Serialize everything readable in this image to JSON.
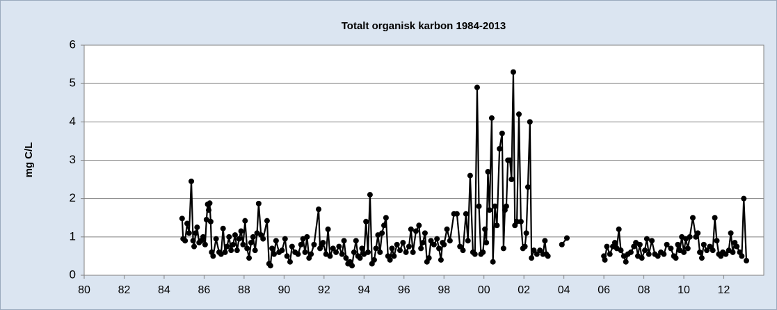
{
  "chart_data": {
    "type": "line",
    "title": "Totalt organisk karbon 1984-2013",
    "y_label": "mg C/L",
    "xlim": [
      1980,
      2014
    ],
    "xticks": [
      {
        "value": 1980,
        "label": "80"
      },
      {
        "value": 1982,
        "label": "82"
      },
      {
        "value": 1984,
        "label": "84"
      },
      {
        "value": 1986,
        "label": "86"
      },
      {
        "value": 1988,
        "label": "88"
      },
      {
        "value": 1990,
        "label": "90"
      },
      {
        "value": 1992,
        "label": "92"
      },
      {
        "value": 1994,
        "label": "94"
      },
      {
        "value": 1996,
        "label": "96"
      },
      {
        "value": 1998,
        "label": "98"
      },
      {
        "value": 2000,
        "label": "00"
      },
      {
        "value": 2002,
        "label": "02"
      },
      {
        "value": 2004,
        "label": "04"
      },
      {
        "value": 2006,
        "label": "06"
      },
      {
        "value": 2008,
        "label": "08"
      },
      {
        "value": 2010,
        "label": "10"
      },
      {
        "value": 2012,
        "label": "12"
      }
    ],
    "ylim": [
      0,
      6
    ],
    "yticks": [
      0,
      1,
      2,
      3,
      4,
      5,
      6
    ],
    "grid": true,
    "color": "#000000",
    "x": [
      1984.9,
      1984.95,
      1985.05,
      1985.15,
      1985.25,
      1985.36,
      1985.45,
      1985.5,
      1985.58,
      1985.65,
      1985.75,
      1985.85,
      1985.95,
      1986.05,
      1986.12,
      1986.18,
      1986.23,
      1986.28,
      1986.33,
      1986.38,
      1986.45,
      1986.6,
      1986.75,
      1986.85,
      1986.95,
      1987.05,
      1987.15,
      1987.25,
      1987.35,
      1987.45,
      1987.55,
      1987.65,
      1987.75,
      1987.85,
      1987.95,
      1988.05,
      1988.15,
      1988.25,
      1988.35,
      1988.45,
      1988.55,
      1988.65,
      1988.73,
      1988.85,
      1988.95,
      1989.15,
      1989.25,
      1989.32,
      1989.4,
      1989.5,
      1989.6,
      1989.75,
      1989.9,
      1990.05,
      1990.15,
      1990.3,
      1990.4,
      1990.55,
      1990.7,
      1990.85,
      1990.95,
      1991.05,
      1991.15,
      1991.25,
      1991.35,
      1991.5,
      1991.73,
      1991.8,
      1991.88,
      1991.95,
      1992.1,
      1992.2,
      1992.3,
      1992.45,
      1992.6,
      1992.75,
      1992.9,
      1993.0,
      1993.1,
      1993.2,
      1993.3,
      1993.4,
      1993.5,
      1993.6,
      1993.7,
      1993.8,
      1993.9,
      1994.0,
      1994.1,
      1994.2,
      1994.3,
      1994.4,
      1994.51,
      1994.6,
      1994.7,
      1994.8,
      1994.9,
      1995.0,
      1995.1,
      1995.2,
      1995.3,
      1995.4,
      1995.5,
      1995.65,
      1995.8,
      1995.95,
      1996.1,
      1996.25,
      1996.35,
      1996.45,
      1996.6,
      1996.75,
      1996.85,
      1996.95,
      1997.05,
      1997.15,
      1997.25,
      1997.35,
      1997.5,
      1997.65,
      1997.75,
      1997.85,
      1997.93,
      1998.0,
      1998.15,
      1998.3,
      1998.5,
      1998.65,
      1998.8,
      1998.95,
      1999.1,
      1999.2,
      1999.31,
      1999.45,
      1999.55,
      1999.66,
      1999.75,
      1999.85,
      1999.95,
      2000.05,
      2000.12,
      2000.2,
      2000.28,
      2000.39,
      2000.45,
      2000.55,
      2000.65,
      2000.78,
      2000.91,
      2000.98,
      2001.05,
      2001.12,
      2001.2,
      2001.3,
      2001.38,
      2001.47,
      2001.55,
      2001.65,
      2001.75,
      2001.85,
      2001.95,
      2002.05,
      2002.12,
      2002.2,
      2002.3,
      2002.38,
      2002.5,
      2002.65,
      2002.8,
      2002.95,
      2003.05,
      2003.12,
      2003.2,
      null,
      2003.9,
      2004.15,
      null,
      2006.0,
      2006.05,
      2006.15,
      2006.3,
      2006.45,
      2006.55,
      2006.65,
      2006.75,
      2006.85,
      2007.0,
      2007.1,
      2007.2,
      2007.35,
      2007.5,
      2007.6,
      2007.7,
      2007.8,
      2007.9,
      2008.05,
      2008.15,
      2008.25,
      2008.4,
      2008.55,
      2008.7,
      2008.85,
      2009.0,
      2009.15,
      2009.35,
      2009.5,
      2009.6,
      2009.7,
      2009.8,
      2009.9,
      2010.0,
      2010.1,
      2010.2,
      2010.3,
      2010.45,
      2010.6,
      2010.7,
      2010.8,
      2010.9,
      2011.0,
      2011.15,
      2011.3,
      2011.45,
      2011.55,
      2011.65,
      2011.75,
      2011.85,
      2011.95,
      2012.1,
      2012.25,
      2012.35,
      2012.45,
      2012.55,
      2012.65,
      2012.8,
      2012.9,
      2013.0,
      2013.13
    ],
    "values": [
      1.48,
      0.95,
      0.9,
      1.35,
      1.1,
      2.45,
      0.9,
      0.75,
      1.1,
      1.25,
      0.85,
      0.9,
      1.0,
      0.8,
      1.45,
      1.85,
      1.7,
      1.88,
      1.4,
      0.6,
      0.5,
      0.95,
      0.6,
      0.55,
      1.22,
      0.6,
      0.75,
      1.0,
      0.65,
      0.8,
      1.05,
      0.65,
      0.95,
      1.15,
      0.8,
      1.42,
      0.7,
      0.45,
      0.85,
      1.0,
      0.65,
      1.1,
      1.87,
      1.05,
      0.95,
      1.42,
      0.3,
      0.25,
      0.7,
      0.55,
      0.9,
      0.6,
      0.65,
      0.95,
      0.5,
      0.35,
      0.75,
      0.6,
      0.55,
      0.8,
      0.95,
      0.6,
      1.0,
      0.45,
      0.55,
      0.8,
      1.72,
      0.7,
      0.8,
      0.85,
      0.55,
      1.2,
      0.5,
      0.7,
      0.6,
      0.75,
      0.55,
      0.9,
      0.45,
      0.3,
      0.35,
      0.25,
      0.6,
      0.9,
      0.5,
      0.45,
      0.7,
      0.55,
      1.4,
      0.6,
      2.1,
      0.3,
      0.4,
      0.7,
      1.05,
      0.6,
      1.1,
      1.3,
      1.5,
      0.5,
      0.4,
      0.7,
      0.5,
      0.8,
      0.65,
      0.85,
      0.6,
      0.75,
      1.2,
      0.6,
      1.15,
      1.3,
      0.7,
      0.85,
      1.1,
      0.35,
      0.45,
      0.9,
      0.8,
      0.95,
      0.7,
      0.4,
      0.85,
      0.8,
      1.2,
      0.9,
      1.6,
      1.6,
      0.75,
      0.65,
      1.6,
      0.9,
      2.6,
      0.6,
      0.55,
      4.9,
      1.8,
      0.55,
      0.6,
      1.2,
      0.85,
      2.7,
      1.7,
      4.1,
      0.35,
      1.8,
      1.3,
      3.3,
      3.7,
      0.7,
      1.7,
      1.8,
      3.0,
      3.0,
      2.5,
      5.3,
      1.3,
      1.4,
      4.2,
      1.4,
      0.7,
      0.75,
      1.1,
      2.3,
      4.0,
      0.45,
      0.65,
      0.55,
      0.65,
      0.55,
      0.9,
      0.55,
      0.5,
      null,
      0.8,
      0.97,
      null,
      0.5,
      0.4,
      0.75,
      0.55,
      0.75,
      0.85,
      0.7,
      1.2,
      0.65,
      0.5,
      0.35,
      0.55,
      0.6,
      0.75,
      0.85,
      0.5,
      0.8,
      0.45,
      0.65,
      0.95,
      0.55,
      0.9,
      0.55,
      0.5,
      0.6,
      0.55,
      0.8,
      0.7,
      0.5,
      0.45,
      0.8,
      0.65,
      1.0,
      0.6,
      0.95,
      0.7,
      1.0,
      1.5,
      1.0,
      1.1,
      0.6,
      0.45,
      0.8,
      0.65,
      0.75,
      0.65,
      1.5,
      0.9,
      0.55,
      0.5,
      0.6,
      0.55,
      0.65,
      1.1,
      0.6,
      0.85,
      0.75,
      0.6,
      0.5,
      2.0,
      0.38
    ]
  }
}
